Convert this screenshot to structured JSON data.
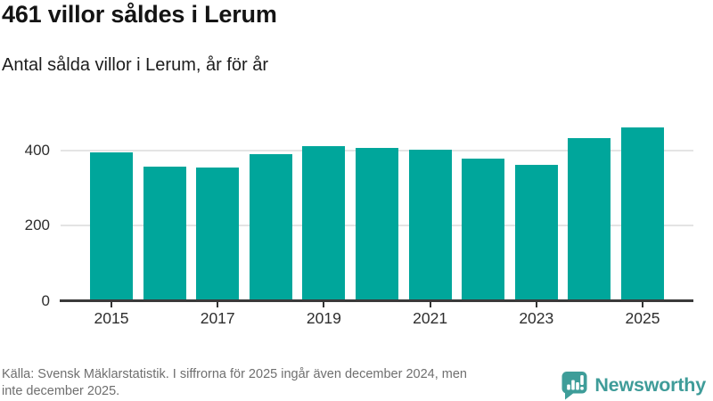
{
  "header": {
    "title": "461 villor såldes i Lerum",
    "subtitle": "Antal sålda villor i Lerum, år för år"
  },
  "chart_data": {
    "type": "bar",
    "categories": [
      2015,
      2016,
      2017,
      2018,
      2019,
      2020,
      2021,
      2022,
      2023,
      2024,
      2025
    ],
    "values": [
      394,
      356,
      355,
      390,
      411,
      406,
      402,
      378,
      361,
      432,
      461
    ],
    "title": "461 villor såldes i Lerum",
    "subtitle": "Antal sålda villor i Lerum, år för år",
    "xlabel": "",
    "ylabel": "",
    "ylim": [
      0,
      480
    ],
    "yticks": [
      0,
      200,
      400
    ],
    "xtick_labels": [
      "2015",
      "2017",
      "2019",
      "2021",
      "2023",
      "2025"
    ],
    "grid": true,
    "legend": false,
    "bar_color": "#00A69B"
  },
  "footer": {
    "source_line1": "Källa: Svensk Mäklarstatistik. I siffrorna för 2025 ingår även december 2024, men",
    "source_line2": "inte december 2025.",
    "brand": "Newsworthy"
  },
  "colors": {
    "bar": "#00A69B",
    "axis": "#3a3a3a",
    "gridline": "#e4e4e4",
    "tick_text": "#2e2e2e",
    "title_text": "#141414",
    "source_text": "#6f6f6f",
    "brand_teal": "#3F9C99",
    "background": "#ffffff"
  }
}
